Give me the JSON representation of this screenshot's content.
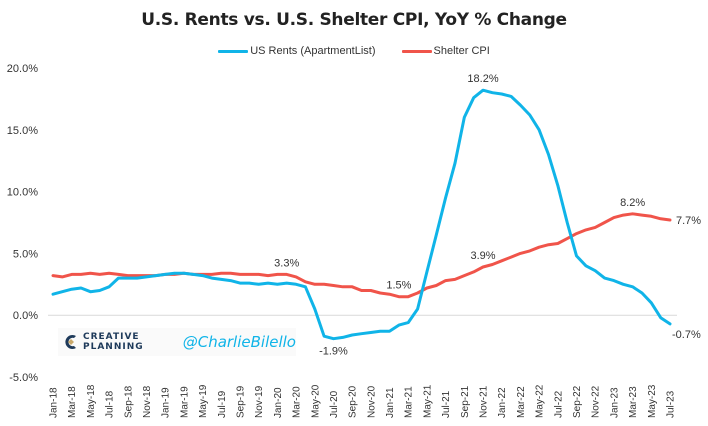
{
  "chart_data": {
    "type": "line",
    "title": "U.S. Rents vs. U.S. Shelter CPI, YoY % Change",
    "xlabel": "",
    "ylabel": "",
    "ylim": [
      -5,
      20
    ],
    "yticks": [
      -5,
      0,
      5,
      10,
      15,
      20
    ],
    "ytick_labels": [
      "-5.0%",
      "0.0%",
      "5.0%",
      "10.0%",
      "15.0%",
      "20.0%"
    ],
    "grid": "zero-line only",
    "legend_position": "top-center",
    "x": [
      "Jan-18",
      "Feb-18",
      "Mar-18",
      "Apr-18",
      "May-18",
      "Jun-18",
      "Jul-18",
      "Aug-18",
      "Sep-18",
      "Oct-18",
      "Nov-18",
      "Dec-18",
      "Jan-19",
      "Feb-19",
      "Mar-19",
      "Apr-19",
      "May-19",
      "Jun-19",
      "Jul-19",
      "Aug-19",
      "Sep-19",
      "Oct-19",
      "Nov-19",
      "Dec-19",
      "Jan-20",
      "Feb-20",
      "Mar-20",
      "Apr-20",
      "May-20",
      "Jun-20",
      "Jul-20",
      "Aug-20",
      "Sep-20",
      "Oct-20",
      "Nov-20",
      "Dec-20",
      "Jan-21",
      "Feb-21",
      "Mar-21",
      "Apr-21",
      "May-21",
      "Jun-21",
      "Jul-21",
      "Aug-21",
      "Sep-21",
      "Oct-21",
      "Nov-21",
      "Dec-21",
      "Jan-22",
      "Feb-22",
      "Mar-22",
      "Apr-22",
      "May-22",
      "Jun-22",
      "Jul-22",
      "Aug-22",
      "Sep-22",
      "Oct-22",
      "Nov-22",
      "Dec-22",
      "Jan-23",
      "Feb-23",
      "Mar-23",
      "Apr-23",
      "May-23",
      "Jun-23",
      "Jul-23"
    ],
    "xtick_labels": [
      "Jan-18",
      "Mar-18",
      "May-18",
      "Jul-18",
      "Sep-18",
      "Nov-18",
      "Jan-19",
      "Mar-19",
      "May-19",
      "Jul-19",
      "Sep-19",
      "Nov-19",
      "Jan-20",
      "Mar-20",
      "May-20",
      "Jul-20",
      "Sep-20",
      "Nov-20",
      "Jan-21",
      "Mar-21",
      "May-21",
      "Jul-21",
      "Sep-21",
      "Nov-21",
      "Jan-22",
      "Mar-22",
      "May-22",
      "Jul-22",
      "Sep-22",
      "Nov-22",
      "Jan-23",
      "Mar-23",
      "May-23",
      "Jul-23"
    ],
    "series": [
      {
        "name": "US Rents (ApartmentList)",
        "color": "#10b4e8",
        "values": [
          1.7,
          1.9,
          2.1,
          2.2,
          1.9,
          2.0,
          2.3,
          3.0,
          3.0,
          3.0,
          3.1,
          3.2,
          3.3,
          3.4,
          3.4,
          3.3,
          3.2,
          3.0,
          2.9,
          2.8,
          2.6,
          2.6,
          2.5,
          2.6,
          2.5,
          2.6,
          2.5,
          2.3,
          0.5,
          -1.7,
          -1.9,
          -1.8,
          -1.6,
          -1.5,
          -1.4,
          -1.3,
          -1.3,
          -0.8,
          -0.6,
          0.5,
          3.5,
          6.5,
          9.5,
          12.3,
          16.0,
          17.6,
          18.2,
          18.0,
          17.9,
          17.7,
          17.0,
          16.2,
          15.0,
          13.0,
          10.5,
          7.5,
          4.8,
          4.0,
          3.6,
          3.0,
          2.8,
          2.5,
          2.3,
          1.8,
          1.0,
          -0.2,
          -0.7
        ]
      },
      {
        "name": "Shelter CPI",
        "color": "#f0544a",
        "values": [
          3.2,
          3.1,
          3.3,
          3.3,
          3.4,
          3.3,
          3.4,
          3.3,
          3.2,
          3.2,
          3.2,
          3.2,
          3.3,
          3.3,
          3.4,
          3.3,
          3.3,
          3.3,
          3.4,
          3.4,
          3.3,
          3.3,
          3.3,
          3.2,
          3.3,
          3.3,
          3.1,
          2.7,
          2.5,
          2.5,
          2.4,
          2.3,
          2.3,
          2.0,
          2.0,
          1.8,
          1.7,
          1.5,
          1.5,
          1.8,
          2.2,
          2.4,
          2.8,
          2.9,
          3.2,
          3.5,
          3.9,
          4.1,
          4.4,
          4.7,
          5.0,
          5.2,
          5.5,
          5.7,
          5.8,
          6.2,
          6.6,
          6.9,
          7.1,
          7.5,
          7.9,
          8.1,
          8.2,
          8.1,
          8.0,
          7.8,
          7.7
        ]
      }
    ],
    "annotations": [
      {
        "series": "US Rents (ApartmentList)",
        "x": "Nov-21",
        "label": "18.2%",
        "pos": "above"
      },
      {
        "series": "US Rents (ApartmentList)",
        "x": "Jul-20",
        "label": "-1.9%",
        "pos": "below"
      },
      {
        "series": "US Rents (ApartmentList)",
        "x": "Jul-23",
        "label": "-0.7%",
        "pos": "right-below"
      },
      {
        "series": "Shelter CPI",
        "x": "Feb-20",
        "label": "3.3%",
        "pos": "above"
      },
      {
        "series": "Shelter CPI",
        "x": "Feb-21",
        "label": "1.5%",
        "pos": "above"
      },
      {
        "series": "Shelter CPI",
        "x": "Nov-21",
        "label": "3.9%",
        "pos": "above"
      },
      {
        "series": "Shelter CPI",
        "x": "Mar-23",
        "label": "8.2%",
        "pos": "above"
      },
      {
        "series": "Shelter CPI",
        "x": "Jul-23",
        "label": "7.7%",
        "pos": "right"
      }
    ]
  },
  "watermark": {
    "brand": "CREATIVE PLANNING",
    "handle": "@CharlieBilello"
  }
}
